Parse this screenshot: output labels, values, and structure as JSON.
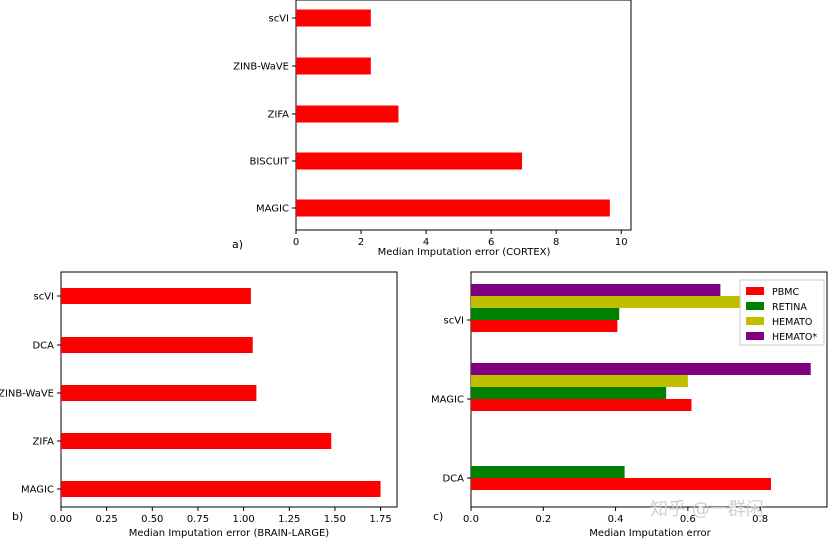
{
  "chart_data": [
    {
      "type": "bar",
      "orientation": "horizontal",
      "panel_label": "a)",
      "categories": [
        "scVI",
        "ZINB-WaVE",
        "ZIFA",
        "BISCUIT",
        "MAGIC"
      ],
      "values": [
        2.3,
        2.3,
        3.15,
        6.95,
        9.65
      ],
      "xticks": [
        "0",
        "2",
        "4",
        "6",
        "8",
        "10"
      ],
      "xlim": [
        0,
        10.3
      ],
      "xlabel": "Median Imputation error (CORTEX)",
      "color": "#ff0000"
    },
    {
      "type": "bar",
      "orientation": "horizontal",
      "panel_label": "b)",
      "categories": [
        "scVI",
        "DCA",
        "ZINB-WaVE",
        "ZIFA",
        "MAGIC"
      ],
      "values": [
        1.04,
        1.05,
        1.07,
        1.48,
        1.75
      ],
      "xticks": [
        "0.00",
        "0.25",
        "0.50",
        "0.75",
        "1.00",
        "1.25",
        "1.50",
        "1.75"
      ],
      "xlim": [
        0,
        1.84
      ],
      "xlabel": "Median Imputation error (BRAIN-LARGE)",
      "color": "#ff0000"
    },
    {
      "type": "bar",
      "orientation": "horizontal",
      "panel_label": "c)",
      "categories": [
        "scVI",
        "MAGIC",
        "DCA"
      ],
      "series": [
        {
          "name": "PBMC",
          "color": "#ff0000",
          "values": [
            0.405,
            0.61,
            0.83
          ]
        },
        {
          "name": "RETINA",
          "color": "#008000",
          "values": [
            0.41,
            0.54,
            0.425
          ]
        },
        {
          "name": "HEMATO",
          "color": "#bfbf00",
          "values": [
            0.75,
            0.6,
            null
          ]
        },
        {
          "name": "HEMATO*",
          "color": "#800080",
          "values": [
            0.69,
            0.94,
            null
          ]
        }
      ],
      "xticks": [
        "0.0",
        "0.2",
        "0.4",
        "0.6",
        "0.8"
      ],
      "xlim": [
        0,
        0.985
      ],
      "xlabel": "Median Imputation error",
      "legend_position": "top-right"
    }
  ],
  "watermark": "知乎 @一群闲"
}
